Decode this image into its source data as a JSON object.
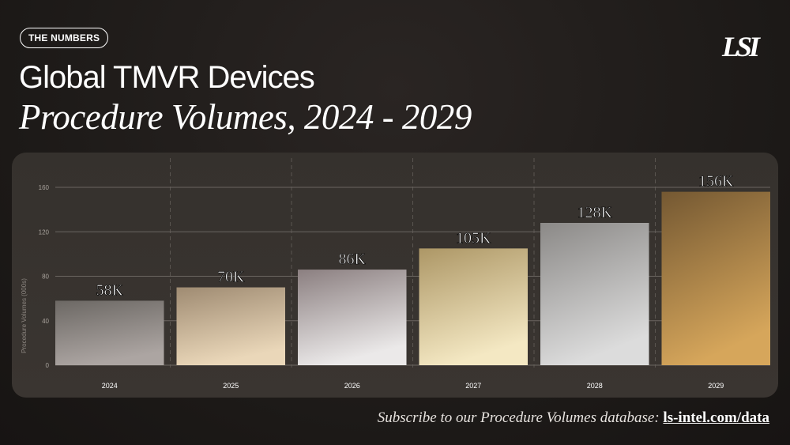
{
  "header": {
    "badge": "THE NUMBERS",
    "title_line1": "Global TMVR Devices",
    "title_line2": "Procedure Volumes, 2024 - 2029",
    "logo": "LSI"
  },
  "footer": {
    "text": "Subscribe to our Procedure Volumes database:",
    "link": "ls-intel.com/data"
  },
  "chart_data": {
    "type": "bar",
    "categories": [
      "2024",
      "2025",
      "2026",
      "2027",
      "2028",
      "2029"
    ],
    "values": [
      58,
      70,
      86,
      105,
      128,
      156
    ],
    "data_labels": [
      "58K",
      "70K",
      "86K",
      "105K",
      "128K",
      "156K"
    ],
    "ylabel": "Procedure Volumes (000s)",
    "xlabel": "",
    "ylim": [
      0,
      160
    ],
    "yticks": [
      0,
      40,
      80,
      120,
      160
    ],
    "grid": true,
    "bar_gradients": [
      [
        "#6c6864",
        "#aca5a2"
      ],
      [
        "#9f8b72",
        "#ead7b9"
      ],
      [
        "#8b7f80",
        "#ebe9e9"
      ],
      [
        "#ad9766",
        "#f4e8c3"
      ],
      [
        "#8b8987",
        "#dcdcdc"
      ],
      [
        "#745832",
        "#d6a65b"
      ]
    ]
  }
}
